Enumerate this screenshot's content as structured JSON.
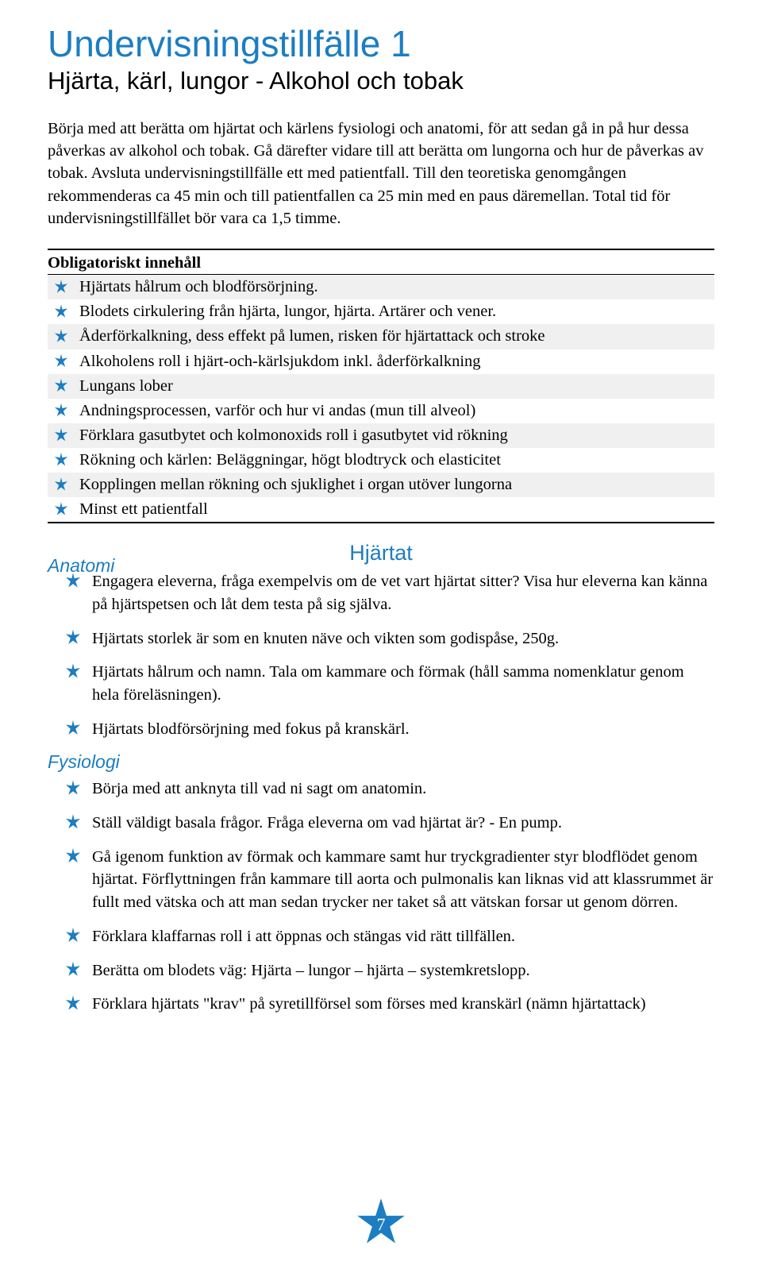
{
  "title": "Undervisningstillfälle 1",
  "subtitle": "Hjärta, kärl, lungor - Alkohol och tobak",
  "intro": "Börja med att berätta om hjärtat och kärlens fysiologi och anatomi, för att sedan gå in på hur dessa påverkas av alkohol och tobak. Gå därefter vidare till att berätta om lungorna och hur de påverkas av tobak. Avsluta undervisningstillfälle ett med patientfall. Till den teoretiska genomgången rekommenderas ca 45 min och till patientfallen ca 25 min med en paus däremellan. Total tid för undervisningstillfället bör vara ca 1,5 timme.",
  "obligatory": {
    "header": "Obligatoriskt innehåll",
    "items": [
      "Hjärtats hålrum och blodförsörjning.",
      "Blodets cirkulering från hjärta, lungor, hjärta. Artärer och vener.",
      "Åderförkalkning, dess effekt på lumen, risken för hjärtattack och stroke",
      "Alkoholens roll i hjärt-och-kärlsjukdom inkl. åderförkalkning",
      "Lungans lober",
      "Andningsprocessen, varför och hur vi andas (mun till alveol)",
      "Förklara gasutbytet och kolmonoxids roll i gasutbytet vid rökning",
      "Rökning och kärlen: Beläggningar, högt blodtryck och elasticitet",
      "Kopplingen mellan rökning och sjuklighet i organ utöver lungorna",
      "Minst ett patientfall"
    ]
  },
  "center_header": "Hjärtat",
  "anatomi": {
    "header": "Anatomi",
    "items": [
      "Engagera eleverna, fråga exempelvis om de vet vart hjärtat sitter? Visa hur eleverna kan känna på hjärtspetsen och låt dem testa på sig själva.",
      "Hjärtats storlek är som en knuten näve och vikten som godispåse, 250g.",
      "Hjärtats hålrum och namn. Tala om kammare och förmak (håll samma nomenklatur genom hela föreläsningen).",
      "Hjärtats blodförsörjning med fokus på kranskärl."
    ]
  },
  "fysiologi": {
    "header": "Fysiologi",
    "items": [
      "Börja med att anknyta till vad ni sagt om anatomin.",
      "Ställ väldigt basala frågor. Fråga eleverna om vad hjärtat är? - En pump.",
      "Gå igenom funktion av förmak och kammare samt hur tryckgradienter styr blodflödet genom hjärtat. Förflyttningen från kammare till aorta och pulmonalis kan liknas vid att klassrummet är fullt med vätska och att man sedan trycker ner taket så att vätskan forsar ut genom dörren.",
      "Förklara klaffarnas roll i att öppnas och stängas vid rätt tillfällen.",
      "Berätta om blodets väg: Hjärta – lungor – hjärta – systemkretslopp.",
      "Förklara hjärtats \"krav\" på syretillförsel som förses med kranskärl (nämn hjärtattack)"
    ]
  },
  "page_number": "7"
}
